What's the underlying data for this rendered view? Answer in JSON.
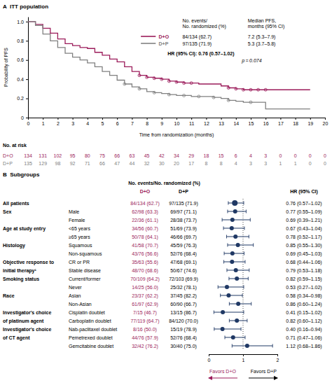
{
  "chart_data": [
    {
      "type": "line",
      "line_style": "step",
      "title": "A  ITT population",
      "x_label": "Time from randomization (months)",
      "y_label": "Probability of PFS",
      "xlim": [
        0,
        20
      ],
      "xticks": [
        0,
        1,
        2,
        3,
        4,
        5,
        6,
        7,
        8,
        9,
        10,
        11,
        12,
        13,
        14,
        15,
        16,
        17,
        18,
        19,
        20
      ],
      "ylim": [
        0,
        1.05
      ],
      "yticks": [
        0,
        0.2,
        0.4,
        0.6,
        0.8,
        {
          "value": 1.0,
          "label": "1.0"
        }
      ],
      "table_headers": [
        "No. events/\nNo. randomized (%)",
        "Median PFS,\nmonths (95% CI)"
      ],
      "annotations": [
        "HR (95% CI): 0.76 (0.57–1.02)",
        "p = 0.074"
      ],
      "at_risk_title": "No. at risk",
      "series": [
        {
          "name": "D+O",
          "color": "#9B1B5A",
          "x": [
            0,
            0.5,
            1.0,
            1.5,
            2.0,
            2.5,
            3.0,
            3.5,
            4.0,
            4.5,
            5.0,
            5.5,
            6.0,
            6.5,
            7.0,
            7.5,
            8.0,
            8.5,
            9.0,
            9.5,
            10.0,
            10.5,
            11.0,
            11.5,
            12.0,
            12.5,
            13.0,
            13.5,
            14.0,
            14.5,
            15.0,
            15.5,
            16.0,
            16.5,
            17.0,
            19.0
          ],
          "values": [
            1.0,
            0.97,
            0.93,
            0.88,
            0.82,
            0.77,
            0.75,
            0.73,
            0.72,
            0.68,
            0.65,
            0.61,
            0.58,
            0.53,
            0.48,
            0.44,
            0.42,
            0.41,
            0.4,
            0.38,
            0.37,
            0.36,
            0.36,
            0.35,
            0.35,
            0.35,
            0.33,
            0.31,
            0.3,
            0.29,
            0.29,
            0.29,
            0.29,
            0.29,
            0.29,
            0.29
          ],
          "censor_x": [
            7.5,
            8.0,
            8.5,
            9.0,
            9.5,
            10.0,
            10.5,
            11.0,
            13.5,
            14.0,
            14.5,
            15.0,
            15.5,
            16.0
          ],
          "censor_values": [
            0.44,
            0.42,
            0.41,
            0.4,
            0.38,
            0.37,
            0.36,
            0.36,
            0.31,
            0.3,
            0.29,
            0.29,
            0.29,
            0.29
          ],
          "events": "84/134 (62.7)",
          "median": "7.2 (5.3–7.9)",
          "at_risk": [
            134,
            131,
            102,
            95,
            80,
            75,
            66,
            63,
            45,
            42,
            34,
            29,
            18,
            15,
            6,
            4,
            3,
            0,
            0,
            0,
            0
          ]
        },
        {
          "name": "D+P",
          "color": "#808080",
          "x": [
            0,
            0.5,
            1.0,
            1.5,
            2.0,
            2.5,
            3.0,
            3.5,
            4.0,
            4.5,
            5.0,
            5.5,
            6.0,
            6.5,
            7.0,
            7.5,
            8.0,
            8.5,
            9.0,
            9.5,
            10.0,
            10.5,
            11.0,
            11.5,
            12.0,
            12.5,
            13.0,
            13.5,
            14.0,
            14.5,
            15.0,
            15.5,
            16.0,
            16.5,
            17.0,
            19.0
          ],
          "values": [
            1.0,
            0.96,
            0.87,
            0.8,
            0.73,
            0.67,
            0.63,
            0.6,
            0.57,
            0.53,
            0.48,
            0.44,
            0.39,
            0.35,
            0.32,
            0.3,
            0.27,
            0.26,
            0.25,
            0.24,
            0.23,
            0.23,
            0.22,
            0.22,
            0.22,
            0.21,
            0.2,
            0.18,
            0.17,
            0.16,
            0.16,
            0.16,
            0.09,
            0.09,
            0.09,
            0.09
          ],
          "censor_x": [
            6.5,
            7.5,
            8.5,
            9.5,
            10.5,
            11.5,
            12.5,
            13.5,
            15.0
          ],
          "censor_values": [
            0.35,
            0.3,
            0.26,
            0.24,
            0.23,
            0.22,
            0.21,
            0.18,
            0.16
          ],
          "events": "97/135 (71.9)",
          "median": "5.3 (3.7–5.8)",
          "at_risk": [
            135,
            129,
            98,
            92,
            71,
            66,
            47,
            44,
            32,
            30,
            20,
            17,
            8,
            8,
            4,
            3,
            3,
            1,
            1,
            0,
            0
          ]
        }
      ]
    },
    {
      "type": "forest",
      "title": "B  Subgroups",
      "group_header": "No. events/No. randomized (%)",
      "hr_header": "HR (95% CI)",
      "color": "#1f3864",
      "xlim": [
        0,
        2
      ],
      "xticks": [
        0,
        1,
        2
      ],
      "reference": 1,
      "annotations": [
        {
          "text": "Favors D+O",
          "color": "#9B1B5A"
        },
        {
          "text": "Favors D+P"
        }
      ],
      "columns": [
        {
          "name": "D+O",
          "color": "#9B1B5A",
          "values": [
            "84/134 (62.7)",
            "62/98 (63.3)",
            "22/36 (61.1)",
            "34/56 (60.7)",
            "50/78 (64.1)",
            "41/58 (70.7)",
            "43/76 (56.6)",
            "35/63 (55.6)",
            "48/70 (68.6)",
            "70/109 (64.2)",
            "14/25 (56.0)",
            "23/37 (62.2)",
            "61/97 (62.9)",
            "7/15 (46.7)",
            "77/119 (64.7)",
            "8/16 (50.0)",
            "44/76 (57.9)",
            "32/42 (76.2)"
          ]
        },
        {
          "name": "D+P",
          "values": [
            "97/135 (71.9)",
            "69/97 (71.1)",
            "28/38 (73.7)",
            "51/69 (73.9)",
            "46/66 (69.7)",
            "45/59 (76.3)",
            "52/76 (68.4)",
            "47/68 (69.1)",
            "50/67 (74.6)",
            "72/103 (69.9)",
            "25/32 (78.1)",
            "37/45 (82.2)",
            "60/90 (66.7)",
            "13/15 (86.7)",
            "84/120 (70.0)",
            "15/19 (78.9)",
            "52/76 (68.4)",
            "30/40 (75.0)"
          ]
        }
      ],
      "rows": [
        {
          "category": "All patients",
          "subgroup": null,
          "hr": 0.76,
          "ci_lo": 0.57,
          "ci_hi": 1.02,
          "hr_text": "0.76 (0.57–1.02)",
          "marker": "large-circle"
        },
        {
          "category": "Sex",
          "subgroup": "Male",
          "hr": 0.77,
          "ci_lo": 0.55,
          "ci_hi": 1.09,
          "hr_text": "0.77 (0.55–1.09)",
          "marker": "circle"
        },
        {
          "category": null,
          "subgroup": "Female",
          "hr": 0.69,
          "ci_lo": 0.39,
          "ci_hi": 1.21,
          "hr_text": "0.69 (0.39–1.21)",
          "marker": "circle"
        },
        {
          "category": "Age at study entry",
          "subgroup": "<65 years",
          "hr": 0.67,
          "ci_lo": 0.43,
          "ci_hi": 1.04,
          "hr_text": "0.67 (0.43–1.04)",
          "marker": "circle"
        },
        {
          "category": null,
          "subgroup": "≥65 years",
          "hr": 0.78,
          "ci_lo": 0.52,
          "ci_hi": 1.17,
          "hr_text": "0.78 (0.52–1.17)",
          "marker": "circle"
        },
        {
          "category": "Histology",
          "subgroup": "Squamous",
          "hr": 0.85,
          "ci_lo": 0.55,
          "ci_hi": 1.3,
          "hr_text": "0.85 (0.55–1.30)",
          "marker": "circle"
        },
        {
          "category": null,
          "subgroup": "Non-squamous",
          "hr": 0.69,
          "ci_lo": 0.45,
          "ci_hi": 1.03,
          "hr_text": "0.69 (0.45–1.03)",
          "marker": "circle"
        },
        {
          "category": "Objective response to\ninitial therapy¹",
          "subgroup": "CR or PR",
          "hr": 0.68,
          "ci_lo": 0.44,
          "ci_hi": 1.06,
          "hr_text": "0.68 (0.44–1.06)",
          "marker": "circle"
        },
        {
          "category": null,
          "subgroup": "Stable disease",
          "hr": 0.79,
          "ci_lo": 0.53,
          "ci_hi": 1.18,
          "hr_text": "0.79 (0.53–1.18)",
          "marker": "circle"
        },
        {
          "category": "Smoking status",
          "subgroup": "Current/former",
          "hr": 0.82,
          "ci_lo": 0.59,
          "ci_hi": 1.15,
          "hr_text": "0.82 (0.59–1.15)",
          "marker": "circle"
        },
        {
          "category": null,
          "subgroup": "Never",
          "hr": 0.53,
          "ci_lo": 0.27,
          "ci_hi": 1.02,
          "hr_text": "0.53 (0.27–1.02)",
          "marker": "circle"
        },
        {
          "category": "Race",
          "subgroup": "Asian",
          "hr": 0.58,
          "ci_lo": 0.34,
          "ci_hi": 0.98,
          "hr_text": "0.58 (0.34–0.98)",
          "marker": "circle"
        },
        {
          "category": null,
          "subgroup": "Non-Asian",
          "hr": 0.86,
          "ci_lo": 0.6,
          "ci_hi": 1.24,
          "hr_text": "0.86 (0.60–1.24)",
          "marker": "circle"
        },
        {
          "category": "Investigator's choice\nof platinum agent",
          "subgroup": "Cisplatin doublet",
          "hr": 0.41,
          "ci_lo": 0.15,
          "ci_hi": 1.02,
          "hr_text": "0.41 (0.15–1.02)",
          "marker": "circle"
        },
        {
          "category": null,
          "subgroup": "Carboplatin doublet",
          "hr": 0.82,
          "ci_lo": 0.6,
          "ci_hi": 1.12,
          "hr_text": "0.82 (0.60–1.12)",
          "marker": "circle"
        },
        {
          "category": "Investigator's choice\nof CT agent",
          "subgroup": "Nab-paclitaxel doublet",
          "hr": 0.4,
          "ci_lo": 0.16,
          "ci_hi": 0.94,
          "hr_text": "0.40 (0.16–0.94)",
          "marker": "circle"
        },
        {
          "category": null,
          "subgroup": "Pemetrexed doublet",
          "hr": 0.71,
          "ci_lo": 0.47,
          "ci_hi": 1.06,
          "hr_text": "0.71 (0.47–1.06)",
          "marker": "circle"
        },
        {
          "category": null,
          "subgroup": "Gemcitabine doublet",
          "hr": 1.12,
          "ci_lo": 0.68,
          "ci_hi": 1.86,
          "hr_text": "1.12 (0.68–1.86)",
          "marker": "circle"
        }
      ]
    }
  ]
}
